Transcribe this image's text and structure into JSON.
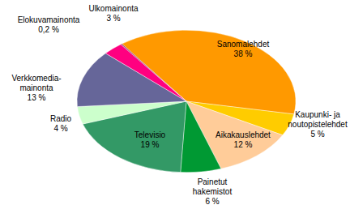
{
  "chart_data": {
    "type": "pie",
    "categories": [
      "Sanomalehdet",
      "Kaupunki- ja\nnoutopistelehdet",
      "Aikakauslehdet",
      "Painetut\nhakemistot",
      "Televisio",
      "Radio",
      "Verkkomedia-\nmainonta",
      "Ulkomainonta",
      "Elokuvamainonta"
    ],
    "values": [
      38,
      5,
      12,
      6,
      19,
      4,
      13,
      3,
      0.2
    ],
    "value_labels": [
      "38 %",
      "5 %",
      "12 %",
      "6 %",
      "19 %",
      "4 %",
      "13 %",
      "3 %",
      "0,2 %"
    ],
    "colors": [
      "#ff9900",
      "#ffcc00",
      "#ffcc99",
      "#009933",
      "#339966",
      "#ccffcc",
      "#666699",
      "#ff0080",
      "#993366"
    ],
    "data_labels": true
  }
}
